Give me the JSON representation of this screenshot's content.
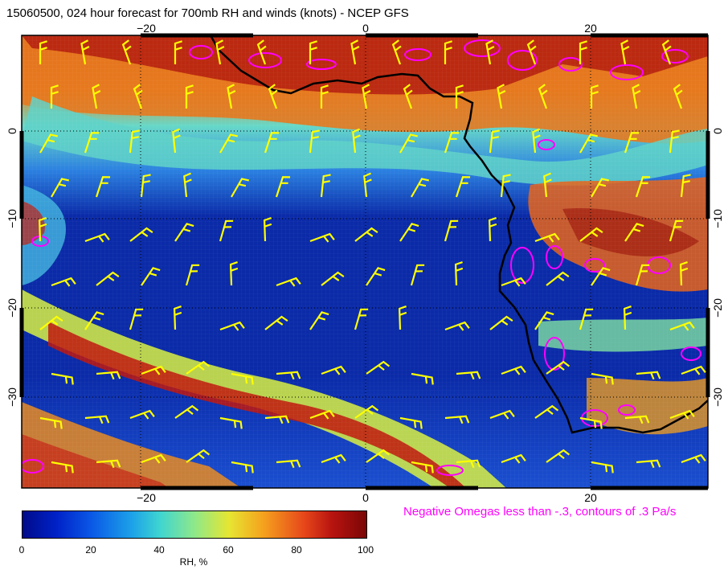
{
  "title": "15060500, 024 hour forecast for 700mb RH and winds (knots) - NCEP GFS",
  "axes": {
    "x_ticks": [
      "−20",
      "0",
      "20"
    ],
    "y_ticks": [
      "0",
      "−10",
      "−20",
      "−30"
    ]
  },
  "note": "Negative Omegas less than -.3, contours of .3 Pa/s",
  "colorbar": {
    "ticks": [
      "0",
      "20",
      "40",
      "60",
      "80",
      "100"
    ],
    "label": "RH, %"
  },
  "colors": {
    "omega_contour": "#ff00ff",
    "wind_barb": "#ffff00",
    "coastline": "#000000"
  }
}
